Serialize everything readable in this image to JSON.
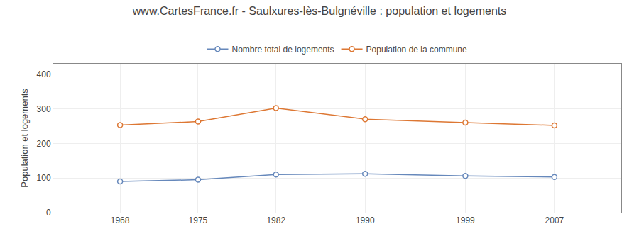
{
  "chart_data": {
    "type": "line",
    "title": "www.CartesFrance.fr - Saulxures-lès-Bulgnéville : population et logements",
    "ylabel": "Population et logements",
    "x": [
      1968,
      1975,
      1982,
      1990,
      1999,
      2007
    ],
    "series": [
      {
        "name": "Nombre total de logements",
        "color": "#6688bb",
        "marker": "circle",
        "values": [
          90,
          95,
          110,
          112,
          106,
          103
        ]
      },
      {
        "name": "Population de la commune",
        "color": "#dd7733",
        "marker": "circle",
        "values": [
          253,
          263,
          302,
          270,
          260,
          252
        ]
      }
    ],
    "xlim": [
      1962,
      2013
    ],
    "xticks": [
      1968,
      1975,
      1982,
      1990,
      1999,
      2007
    ],
    "ylim": [
      0,
      430
    ],
    "yticks": [
      0,
      100,
      200,
      300,
      400
    ],
    "grid": true,
    "legend": "top"
  }
}
